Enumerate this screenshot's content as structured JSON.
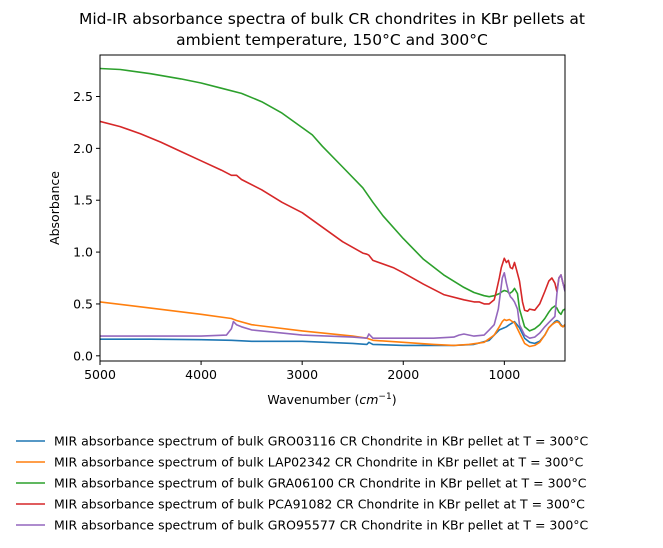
{
  "chart_data": {
    "type": "line",
    "title_lines": [
      "Mid-IR absorbance spectra of bulk CR chondrites in KBr pellets at",
      "ambient temperature, 150°C and 300°C"
    ],
    "xlabel_main": "Wavenumber (",
    "xlabel_unit": "cm",
    "xlabel_exp": "−1",
    "xlabel_close": ")",
    "ylabel": "Absorbance",
    "xlim": [
      5000,
      400
    ],
    "ylim": [
      -0.05,
      2.9
    ],
    "x_inverted": true,
    "x_ticks": [
      {
        "value": 5000,
        "label": "5000"
      },
      {
        "value": 4000,
        "label": "4000"
      },
      {
        "value": 3000,
        "label": "3000"
      },
      {
        "value": 2000,
        "label": "2000"
      },
      {
        "value": 1000,
        "label": "1000"
      }
    ],
    "y_ticks": [
      {
        "value": 0.0,
        "label": "0.0"
      },
      {
        "value": 0.5,
        "label": "0.5"
      },
      {
        "value": 1.0,
        "label": "1.0"
      },
      {
        "value": 1.5,
        "label": "1.5"
      },
      {
        "value": 2.0,
        "label": "2.0"
      },
      {
        "value": 2.5,
        "label": "2.5"
      }
    ],
    "legend_position": "below plot",
    "series": [
      {
        "name": "MIR absorbance spectrum of bulk GRO03116 CR Chondrite in KBr pellet at T = 300°C",
        "color": "#1f77b4",
        "x": [
          5000,
          4500,
          4000,
          3700,
          3500,
          3000,
          2500,
          2360,
          2340,
          2300,
          2000,
          1700,
          1500,
          1300,
          1150,
          1100,
          1050,
          1000,
          980,
          950,
          900,
          850,
          800,
          750,
          700,
          650,
          600,
          560,
          530,
          500,
          480,
          460,
          440,
          420,
          400
        ],
        "y": [
          0.16,
          0.16,
          0.155,
          0.15,
          0.14,
          0.14,
          0.12,
          0.11,
          0.13,
          0.11,
          0.1,
          0.1,
          0.1,
          0.11,
          0.15,
          0.2,
          0.25,
          0.27,
          0.28,
          0.3,
          0.33,
          0.27,
          0.17,
          0.13,
          0.12,
          0.14,
          0.2,
          0.27,
          0.3,
          0.33,
          0.34,
          0.33,
          0.3,
          0.28,
          0.3
        ]
      },
      {
        "name": "MIR absorbance spectrum of bulk LAP02342 CR Chondrite in KBr pellet at T = 300°C",
        "color": "#ff7f0e",
        "x": [
          5000,
          4500,
          4000,
          3700,
          3650,
          3500,
          3000,
          2500,
          2360,
          2300,
          2000,
          1700,
          1500,
          1350,
          1200,
          1100,
          1050,
          1020,
          1000,
          980,
          950,
          920,
          900,
          850,
          800,
          750,
          700,
          650,
          600,
          560,
          530,
          500,
          480,
          460,
          440,
          420,
          400
        ],
        "y": [
          0.52,
          0.46,
          0.4,
          0.36,
          0.34,
          0.3,
          0.24,
          0.19,
          0.17,
          0.15,
          0.13,
          0.11,
          0.1,
          0.11,
          0.13,
          0.2,
          0.28,
          0.33,
          0.35,
          0.34,
          0.35,
          0.33,
          0.32,
          0.22,
          0.12,
          0.09,
          0.1,
          0.13,
          0.2,
          0.27,
          0.3,
          0.32,
          0.33,
          0.32,
          0.29,
          0.28,
          0.3
        ]
      },
      {
        "name": "MIR absorbance spectrum of bulk GRA06100 CR Chondrite in KBr pellet at T = 300°C",
        "color": "#2ca02c",
        "x": [
          5000,
          4800,
          4500,
          4200,
          4000,
          3800,
          3600,
          3400,
          3200,
          3000,
          2900,
          2800,
          2600,
          2400,
          2300,
          2200,
          2000,
          1800,
          1600,
          1400,
          1300,
          1200,
          1150,
          1100,
          1050,
          1020,
          1000,
          970,
          950,
          920,
          900,
          870,
          850,
          800,
          750,
          700,
          650,
          600,
          560,
          530,
          500,
          480,
          460,
          440,
          420,
          400
        ],
        "y": [
          2.77,
          2.76,
          2.72,
          2.67,
          2.63,
          2.58,
          2.53,
          2.45,
          2.34,
          2.2,
          2.13,
          2.02,
          1.82,
          1.62,
          1.48,
          1.35,
          1.13,
          0.93,
          0.78,
          0.66,
          0.61,
          0.58,
          0.57,
          0.58,
          0.6,
          0.62,
          0.63,
          0.62,
          0.6,
          0.62,
          0.65,
          0.6,
          0.45,
          0.28,
          0.24,
          0.26,
          0.3,
          0.36,
          0.42,
          0.46,
          0.48,
          0.46,
          0.42,
          0.4,
          0.44,
          0.45
        ]
      },
      {
        "name": "MIR absorbance spectrum of bulk PCA91082 CR Chondrite in KBr pellet at T = 300°C",
        "color": "#d62728",
        "x": [
          5000,
          4800,
          4600,
          4400,
          4200,
          4000,
          3800,
          3700,
          3650,
          3600,
          3400,
          3200,
          3000,
          2800,
          2600,
          2400,
          2360,
          2340,
          2300,
          2100,
          2000,
          1800,
          1600,
          1400,
          1300,
          1250,
          1200,
          1150,
          1100,
          1080,
          1050,
          1030,
          1000,
          980,
          960,
          940,
          920,
          900,
          880,
          850,
          820,
          800,
          770,
          750,
          700,
          650,
          600,
          560,
          530,
          500,
          480,
          460,
          440,
          420,
          400
        ],
        "y": [
          2.26,
          2.21,
          2.14,
          2.06,
          1.97,
          1.88,
          1.79,
          1.74,
          1.74,
          1.7,
          1.6,
          1.48,
          1.38,
          1.24,
          1.1,
          0.99,
          0.98,
          0.97,
          0.92,
          0.85,
          0.8,
          0.69,
          0.59,
          0.54,
          0.52,
          0.52,
          0.5,
          0.5,
          0.54,
          0.62,
          0.75,
          0.85,
          0.94,
          0.9,
          0.92,
          0.85,
          0.84,
          0.9,
          0.83,
          0.72,
          0.52,
          0.44,
          0.43,
          0.45,
          0.44,
          0.5,
          0.62,
          0.72,
          0.75,
          0.7,
          0.62,
          0.75,
          0.78,
          0.7,
          0.63
        ]
      },
      {
        "name": "MIR absorbance spectrum of bulk GRO95577 CR Chondrite in KBr pellet at T = 300°C",
        "color": "#9467bd",
        "x": [
          5000,
          4500,
          4000,
          3750,
          3700,
          3680,
          3650,
          3600,
          3500,
          3000,
          2500,
          2360,
          2340,
          2300,
          2000,
          1700,
          1500,
          1450,
          1400,
          1300,
          1200,
          1150,
          1100,
          1060,
          1040,
          1020,
          1000,
          980,
          960,
          940,
          920,
          900,
          870,
          850,
          800,
          750,
          700,
          650,
          600,
          560,
          530,
          500,
          480,
          460,
          440,
          420,
          400
        ],
        "y": [
          0.19,
          0.19,
          0.19,
          0.2,
          0.26,
          0.33,
          0.3,
          0.28,
          0.25,
          0.2,
          0.18,
          0.17,
          0.21,
          0.17,
          0.17,
          0.17,
          0.18,
          0.2,
          0.21,
          0.19,
          0.2,
          0.25,
          0.3,
          0.45,
          0.6,
          0.75,
          0.8,
          0.7,
          0.62,
          0.57,
          0.55,
          0.52,
          0.45,
          0.3,
          0.2,
          0.17,
          0.18,
          0.22,
          0.28,
          0.32,
          0.35,
          0.38,
          0.6,
          0.75,
          0.78,
          0.7,
          0.62
        ]
      }
    ]
  }
}
